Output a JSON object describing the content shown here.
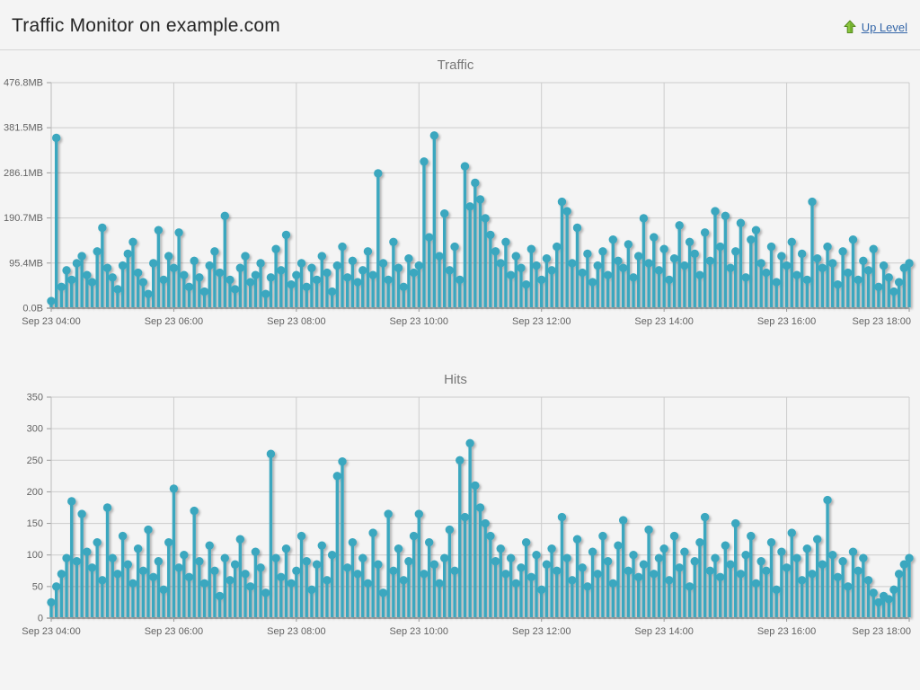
{
  "header": {
    "title": "Traffic Monitor on example.com",
    "up_level_label": "Up Level"
  },
  "colors": {
    "series": "#3aa7bf",
    "grid": "#cccccc",
    "axis": "#b2b2b2",
    "tick_label": "#636363",
    "chart_title": "#777777",
    "link": "#3466a8",
    "background": "#f4f4f4"
  },
  "chart_data": [
    {
      "type": "scatter",
      "marker": "stem-circle",
      "title": "Traffic",
      "xlabel": "",
      "ylabel": "",
      "unit": "bytes",
      "ylim": [
        0,
        476.8
      ],
      "grid": true,
      "legend": false,
      "yticks": [
        {
          "value": 0,
          "label": "0.0B"
        },
        {
          "value": 95.4,
          "label": "95.4MB"
        },
        {
          "value": 190.7,
          "label": "190.7MB"
        },
        {
          "value": 286.1,
          "label": "286.1MB"
        },
        {
          "value": 381.5,
          "label": "381.5MB"
        },
        {
          "value": 476.8,
          "label": "476.8MB"
        }
      ],
      "x_start_minutes": 0,
      "x_step_minutes": 5,
      "x_range_minutes": 840,
      "xticks": [
        {
          "minutes": 0,
          "label": "Sep 23 04:00"
        },
        {
          "minutes": 120,
          "label": "Sep 23 06:00"
        },
        {
          "minutes": 240,
          "label": "Sep 23 08:00"
        },
        {
          "minutes": 360,
          "label": "Sep 23 10:00"
        },
        {
          "minutes": 480,
          "label": "Sep 23 12:00"
        },
        {
          "minutes": 600,
          "label": "Sep 23 14:00"
        },
        {
          "minutes": 720,
          "label": "Sep 23 16:00"
        },
        {
          "minutes": 840,
          "label": "Sep 23 18:00"
        }
      ],
      "values": [
        15,
        360,
        45,
        80,
        60,
        95,
        110,
        70,
        55,
        120,
        170,
        85,
        65,
        40,
        90,
        115,
        140,
        75,
        55,
        30,
        95,
        165,
        60,
        110,
        85,
        160,
        70,
        45,
        100,
        65,
        35,
        90,
        120,
        75,
        195,
        60,
        40,
        85,
        110,
        55,
        70,
        95,
        30,
        65,
        125,
        80,
        155,
        50,
        70,
        95,
        45,
        85,
        60,
        110,
        75,
        35,
        90,
        130,
        65,
        100,
        55,
        80,
        120,
        70,
        285,
        95,
        60,
        140,
        85,
        45,
        105,
        75,
        90,
        310,
        150,
        365,
        110,
        200,
        80,
        130,
        60,
        300,
        215,
        265,
        230,
        190,
        155,
        120,
        95,
        140,
        70,
        110,
        85,
        50,
        125,
        90,
        60,
        105,
        80,
        130,
        225,
        205,
        95,
        170,
        75,
        115,
        55,
        90,
        120,
        70,
        145,
        100,
        85,
        135,
        65,
        110,
        190,
        95,
        150,
        80,
        125,
        60,
        105,
        175,
        90,
        140,
        115,
        70,
        160,
        100,
        205,
        130,
        195,
        85,
        120,
        180,
        65,
        145,
        165,
        95,
        75,
        130,
        55,
        110,
        90,
        140,
        70,
        115,
        60,
        225,
        105,
        85,
        130,
        95,
        50,
        120,
        75,
        145,
        60,
        100,
        80,
        125,
        45,
        90,
        65,
        35,
        55,
        85,
        95
      ]
    },
    {
      "type": "scatter",
      "marker": "stem-circle",
      "title": "Hits",
      "xlabel": "",
      "ylabel": "",
      "unit": "hits",
      "ylim": [
        0,
        350
      ],
      "grid": true,
      "legend": false,
      "yticks": [
        {
          "value": 0,
          "label": "0"
        },
        {
          "value": 50,
          "label": "50"
        },
        {
          "value": 100,
          "label": "100"
        },
        {
          "value": 150,
          "label": "150"
        },
        {
          "value": 200,
          "label": "200"
        },
        {
          "value": 250,
          "label": "250"
        },
        {
          "value": 300,
          "label": "300"
        },
        {
          "value": 350,
          "label": "350"
        }
      ],
      "x_start_minutes": 0,
      "x_step_minutes": 5,
      "x_range_minutes": 840,
      "xticks": [
        {
          "minutes": 0,
          "label": "Sep 23 04:00"
        },
        {
          "minutes": 120,
          "label": "Sep 23 06:00"
        },
        {
          "minutes": 240,
          "label": "Sep 23 08:00"
        },
        {
          "minutes": 360,
          "label": "Sep 23 10:00"
        },
        {
          "minutes": 480,
          "label": "Sep 23 12:00"
        },
        {
          "minutes": 600,
          "label": "Sep 23 14:00"
        },
        {
          "minutes": 720,
          "label": "Sep 23 16:00"
        },
        {
          "minutes": 840,
          "label": "Sep 23 18:00"
        }
      ],
      "values": [
        25,
        50,
        70,
        95,
        185,
        90,
        165,
        105,
        80,
        120,
        60,
        175,
        95,
        70,
        130,
        85,
        55,
        110,
        75,
        140,
        65,
        90,
        45,
        120,
        205,
        80,
        100,
        65,
        170,
        90,
        55,
        115,
        75,
        35,
        95,
        60,
        85,
        125,
        70,
        50,
        105,
        80,
        40,
        260,
        95,
        65,
        110,
        55,
        75,
        130,
        90,
        45,
        85,
        115,
        60,
        100,
        225,
        248,
        80,
        120,
        70,
        95,
        55,
        135,
        85,
        40,
        165,
        75,
        110,
        60,
        90,
        130,
        165,
        70,
        120,
        85,
        55,
        95,
        140,
        75,
        250,
        160,
        277,
        210,
        175,
        150,
        130,
        90,
        110,
        70,
        95,
        55,
        80,
        120,
        65,
        100,
        45,
        85,
        110,
        75,
        160,
        95,
        60,
        125,
        80,
        50,
        105,
        70,
        130,
        90,
        55,
        115,
        155,
        75,
        100,
        65,
        85,
        140,
        70,
        95,
        110,
        60,
        130,
        80,
        105,
        50,
        90,
        120,
        160,
        75,
        95,
        65,
        115,
        85,
        150,
        70,
        100,
        130,
        55,
        90,
        75,
        120,
        45,
        105,
        80,
        135,
        95,
        60,
        110,
        70,
        125,
        85,
        187,
        100,
        65,
        90,
        50,
        105,
        75,
        95,
        60,
        40,
        25,
        35,
        30,
        45,
        70,
        85,
        95
      ]
    }
  ]
}
